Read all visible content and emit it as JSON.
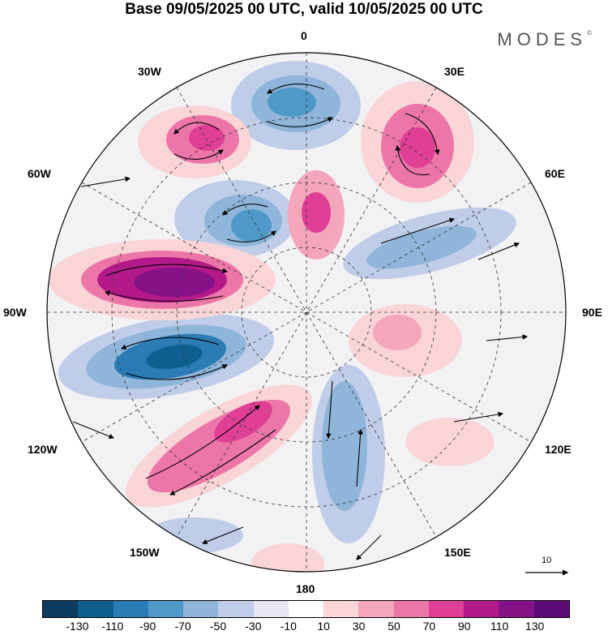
{
  "title": "Base 09/05/2025 00 UTC, valid 10/05/2025 00 UTC",
  "brand": {
    "name": "MODES",
    "mark": "©"
  },
  "longitude_labels": {
    "top": "0",
    "right_upper": "30E",
    "right_mid": "60E",
    "right": "90E",
    "right_lower": "120E",
    "bottom_right": "150E",
    "bottom": "180",
    "bottom_left": "150W",
    "left_lower": "120W",
    "left": "90W",
    "left_mid": "60W",
    "left_upper": "30W"
  },
  "vector_reference": {
    "value": "10"
  },
  "colorbar": {
    "colors": [
      "#0b3b5e",
      "#0e5f8f",
      "#2b7bb5",
      "#4f99c8",
      "#8fb5da",
      "#c0cde8",
      "#e6e6f2",
      "#ffffff",
      "#f9d5d7",
      "#f4a6bc",
      "#ec76a8",
      "#df3f95",
      "#b4198a",
      "#861287",
      "#5a0b78"
    ],
    "tick_labels": [
      "-130",
      "-110",
      "-90",
      "-70",
      "-50",
      "-30",
      "-10",
      "10",
      "30",
      "50",
      "70",
      "90",
      "110",
      "130"
    ]
  }
}
